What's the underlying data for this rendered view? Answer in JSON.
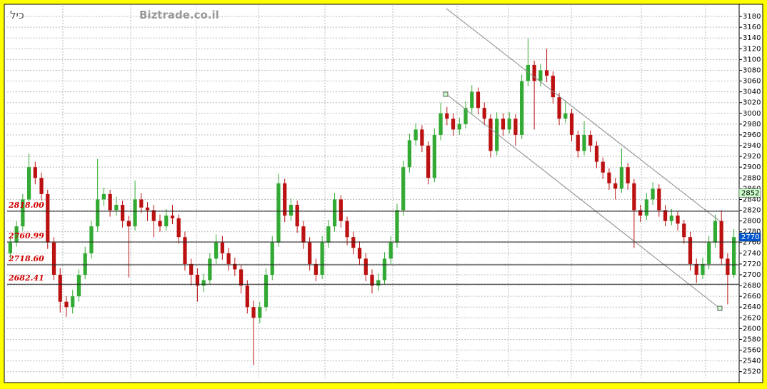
{
  "chart_data": {
    "type": "candlestick",
    "title": "כיל",
    "watermark": "Biztrade.co.il",
    "up_color": "#33aa33",
    "down_color": "#bb1111",
    "open": [
      2740,
      2760,
      2790,
      2840,
      2900,
      2880,
      2850,
      2760,
      2700,
      2650,
      2640,
      2660,
      2700,
      2740,
      2790,
      2840,
      2850,
      2820,
      2830,
      2800,
      2790,
      2840,
      2825,
      2820,
      2800,
      2790,
      2810,
      2805,
      2770,
      2720,
      2700,
      2680,
      2690,
      2730,
      2760,
      2740,
      2720,
      2710,
      2680,
      2640,
      2620,
      2640,
      2700,
      2760,
      2870,
      2810,
      2830,
      2790,
      2760,
      2720,
      2700,
      2760,
      2790,
      2840,
      2800,
      2770,
      2750,
      2730,
      2700,
      2680,
      2690,
      2730,
      2760,
      2820,
      2900,
      2950,
      2970,
      2940,
      2880,
      2960,
      3000,
      2990,
      2970,
      2980,
      3010,
      3040,
      3010,
      2990,
      2930,
      2990,
      2970,
      2990,
      2960,
      3060,
      3090,
      3060,
      3080,
      3070,
      3030,
      2990,
      3000,
      2960,
      2930,
      2960,
      2940,
      2910,
      2890,
      2870,
      2860,
      2900,
      2870,
      2820,
      2810,
      2840,
      2860,
      2820,
      2800,
      2810,
      2795,
      2770,
      2720,
      2700,
      2720,
      2760,
      2800,
      2730,
      2700
    ],
    "high": [
      2772,
      2800,
      2850,
      2925,
      2910,
      2890,
      2858,
      2770,
      2712,
      2660,
      2672,
      2710,
      2752,
      2800,
      2915,
      2862,
      2858,
      2845,
      2838,
      2810,
      2875,
      2852,
      2835,
      2830,
      2812,
      2822,
      2830,
      2812,
      2780,
      2730,
      2712,
      2702,
      2740,
      2775,
      2772,
      2750,
      2732,
      2718,
      2690,
      2652,
      2650,
      2712,
      2772,
      2888,
      2878,
      2842,
      2838,
      2800,
      2770,
      2730,
      2772,
      2802,
      2852,
      2848,
      2808,
      2780,
      2762,
      2740,
      2710,
      2702,
      2742,
      2772,
      2832,
      2912,
      2962,
      2982,
      2978,
      2948,
      2972,
      3020,
      3012,
      3000,
      2992,
      3022,
      3052,
      3048,
      3020,
      2998,
      3002,
      3000,
      3002,
      2998,
      3072,
      3140,
      3098,
      3092,
      3120,
      3078,
      3038,
      3024,
      3008,
      2968,
      2985,
      2968,
      2948,
      2918,
      2898,
      2880,
      2935,
      2908,
      2878,
      2830,
      2852,
      2872,
      2868,
      2830,
      2822,
      2818,
      2802,
      2780,
      2730,
      2732,
      2772,
      2812,
      2820,
      2740,
      2785
    ],
    "low": [
      2730,
      2752,
      2782,
      2830,
      2868,
      2838,
      2748,
      2690,
      2630,
      2622,
      2628,
      2650,
      2692,
      2730,
      2780,
      2828,
      2808,
      2810,
      2788,
      2695,
      2782,
      2815,
      2800,
      2770,
      2780,
      2782,
      2794,
      2758,
      2708,
      2680,
      2650,
      2668,
      2682,
      2720,
      2728,
      2708,
      2698,
      2665,
      2628,
      2532,
      2610,
      2632,
      2690,
      2752,
      2798,
      2800,
      2778,
      2748,
      2708,
      2688,
      2692,
      2750,
      2780,
      2788,
      2755,
      2738,
      2718,
      2688,
      2665,
      2670,
      2682,
      2720,
      2750,
      2810,
      2890,
      2940,
      2928,
      2868,
      2872,
      2950,
      2978,
      2958,
      2960,
      2972,
      3000,
      2998,
      2978,
      2918,
      2922,
      2958,
      2962,
      2940,
      2952,
      3050,
      2970,
      3050,
      3058,
      3018,
      2978,
      2982,
      2948,
      2918,
      2922,
      2928,
      2898,
      2878,
      2858,
      2840,
      2852,
      2858,
      2750,
      2798,
      2802,
      2830,
      2808,
      2790,
      2792,
      2782,
      2758,
      2708,
      2685,
      2692,
      2710,
      2750,
      2718,
      2645,
      2695
    ],
    "close": [
      2760,
      2790,
      2840,
      2900,
      2880,
      2850,
      2760,
      2700,
      2650,
      2640,
      2660,
      2700,
      2740,
      2790,
      2840,
      2850,
      2820,
      2830,
      2800,
      2790,
      2840,
      2825,
      2820,
      2800,
      2790,
      2810,
      2805,
      2770,
      2720,
      2700,
      2680,
      2690,
      2730,
      2760,
      2740,
      2720,
      2710,
      2680,
      2640,
      2620,
      2640,
      2700,
      2760,
      2870,
      2810,
      2830,
      2790,
      2760,
      2720,
      2700,
      2760,
      2790,
      2840,
      2800,
      2770,
      2750,
      2730,
      2700,
      2680,
      2690,
      2730,
      2760,
      2820,
      2900,
      2950,
      2970,
      2940,
      2880,
      2960,
      3000,
      2990,
      2970,
      2980,
      3010,
      3040,
      3010,
      2990,
      2930,
      2990,
      2970,
      2990,
      2960,
      3060,
      3090,
      3060,
      3080,
      3070,
      3030,
      2990,
      3000,
      2960,
      2930,
      2960,
      2940,
      2910,
      2890,
      2870,
      2860,
      2900,
      2870,
      2820,
      2810,
      2840,
      2860,
      2820,
      2800,
      2810,
      2795,
      2770,
      2720,
      2700,
      2720,
      2760,
      2800,
      2730,
      2700,
      2770
    ],
    "ylim": [
      2505,
      3200
    ],
    "yticks": [
      2520,
      2540,
      2560,
      2580,
      2600,
      2620,
      2640,
      2660,
      2680,
      2700,
      2720,
      2740,
      2760,
      2780,
      2800,
      2820,
      2840,
      2860,
      2880,
      2900,
      2920,
      2940,
      2960,
      2980,
      3000,
      3020,
      3040,
      3060,
      3080,
      3100,
      3120,
      3140,
      3160,
      3180
    ],
    "grid": true,
    "levels": [
      {
        "value": 2818,
        "label": "2818.00"
      },
      {
        "value": 2760.99,
        "label": "2760.99"
      },
      {
        "value": 2718.6,
        "label": "2718.60"
      },
      {
        "value": 2682.41,
        "label": "2682.41"
      }
    ],
    "price_badges": [
      {
        "value": 2852,
        "color": "#ccffcc"
      },
      {
        "value": 2770,
        "color": "#0055cc"
      }
    ]
  }
}
